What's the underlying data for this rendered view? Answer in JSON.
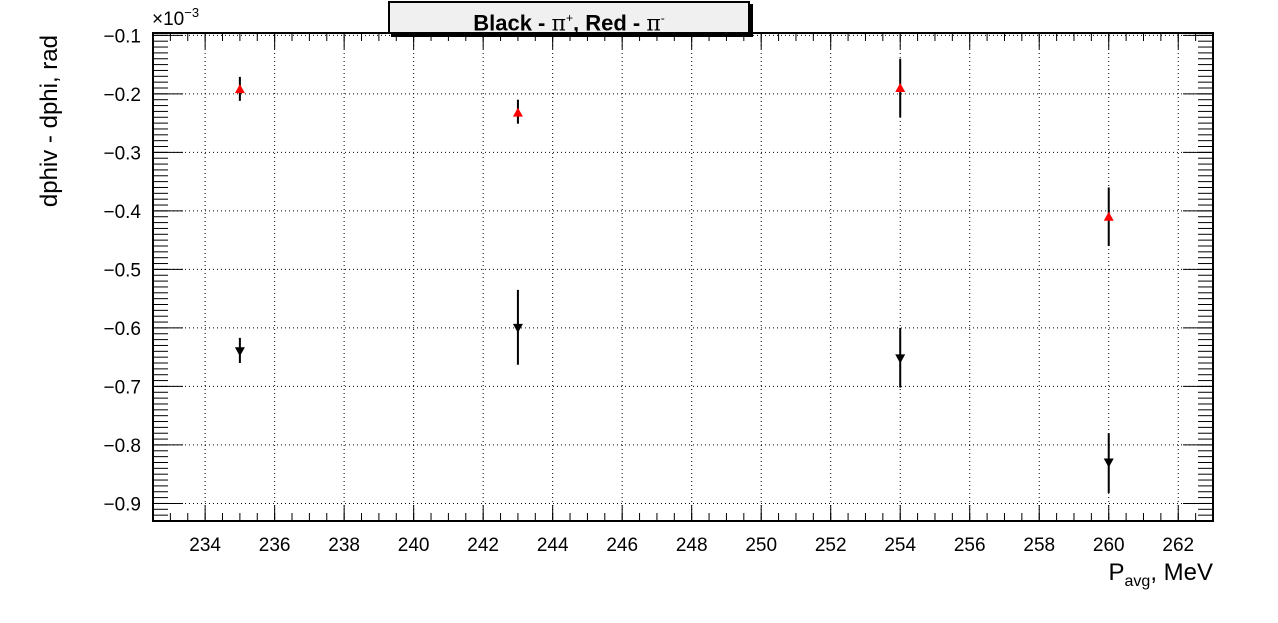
{
  "chart_data": {
    "type": "scatter",
    "title_parts": {
      "black": "Black - ",
      "pi1": "π",
      "sup1": "+",
      "red": ", Red - ",
      "pi2": "π",
      "sup2": "-"
    },
    "xlabel": "P",
    "xlabel_sub": "avg",
    "xlabel_unit": ", MeV",
    "ylabel": "dphiv - dphi, rad",
    "y_exponent": "×10",
    "y_exponent_power": "−3",
    "xlim": [
      232.5,
      263
    ],
    "ylim": [
      -0.93,
      -0.096
    ],
    "xticks": [
      234,
      236,
      238,
      240,
      242,
      244,
      246,
      248,
      250,
      252,
      254,
      256,
      258,
      260,
      262
    ],
    "xtick_labels": [
      "234",
      "236",
      "238",
      "240",
      "242",
      "244",
      "246",
      "248",
      "250",
      "252",
      "254",
      "256",
      "258",
      "260",
      "262"
    ],
    "yticks": [
      -0.1,
      -0.2,
      -0.3,
      -0.4,
      -0.5,
      -0.6,
      -0.7,
      -0.8,
      -0.9
    ],
    "ytick_labels": [
      "−0.1",
      "−0.2",
      "−0.3",
      "−0.4",
      "−0.5",
      "−0.6",
      "−0.7",
      "−0.8",
      "−0.9"
    ],
    "grid": true,
    "series": [
      {
        "color": "#000000",
        "marker": "triangle-down",
        "points": [
          {
            "x": 235,
            "y": -0.64,
            "ylo": -0.66,
            "yhi": -0.617
          },
          {
            "x": 243,
            "y": -0.6,
            "ylo": -0.663,
            "yhi": -0.535
          },
          {
            "x": 254,
            "y": -0.652,
            "ylo": -0.702,
            "yhi": -0.6
          },
          {
            "x": 260,
            "y": -0.83,
            "ylo": -0.882,
            "yhi": -0.78
          }
        ]
      },
      {
        "color": "#ff0000",
        "marker": "triangle-up",
        "points": [
          {
            "x": 235,
            "y": -0.192,
            "ylo": -0.212,
            "yhi": -0.171
          },
          {
            "x": 243,
            "y": -0.232,
            "ylo": -0.251,
            "yhi": -0.21
          },
          {
            "x": 254,
            "y": -0.19,
            "ylo": -0.24,
            "yhi": -0.14
          },
          {
            "x": 260,
            "y": -0.41,
            "ylo": -0.46,
            "yhi": -0.36
          }
        ]
      }
    ]
  }
}
